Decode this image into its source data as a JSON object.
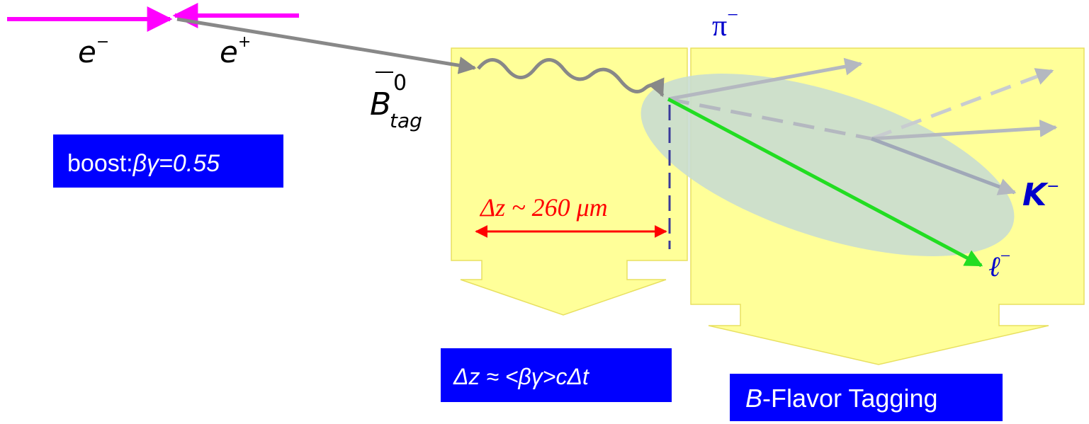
{
  "beams": {
    "electron": {
      "symbol": "e",
      "charge": "−"
    },
    "positron": {
      "symbol": "e",
      "charge": "+"
    }
  },
  "tag_meson": {
    "symbol": "B",
    "superscript": "0",
    "subscript": "tag"
  },
  "boost_box": {
    "label": "boost:",
    "value": "βγ=0.55"
  },
  "decay_length": "Δz ~ 260 μm",
  "relation_box": "Δz ≈ <βγ>cΔt",
  "tagging_box": {
    "prefix": "B",
    "text": "-Flavor Tagging"
  },
  "particles": {
    "pion": {
      "symbol": "π",
      "charge": "−"
    },
    "kaon": {
      "symbol": "K",
      "charge": "−"
    },
    "lepton": {
      "symbol": "ℓ",
      "charge": "−"
    }
  }
}
